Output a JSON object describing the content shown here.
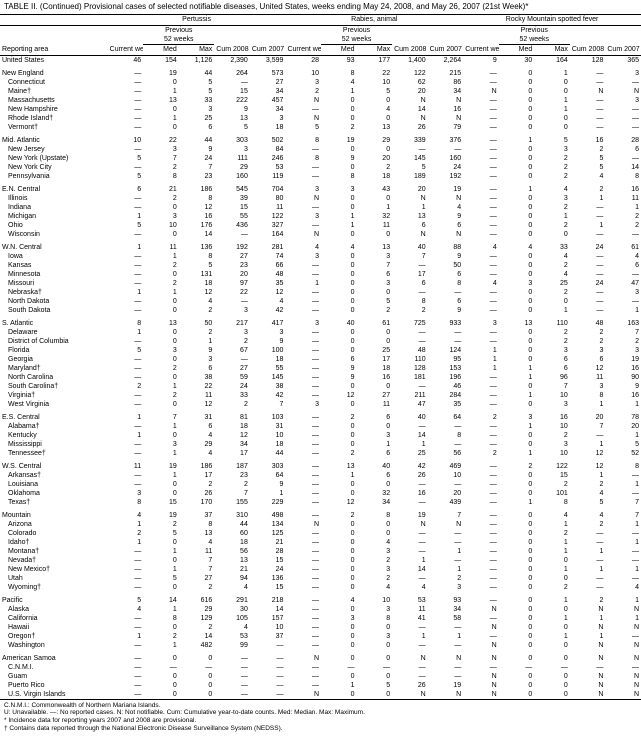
{
  "title": "TABLE II. (Continued) Provisional cases of selected notifiable diseases, United States, weeks ending May 24, 2008, and May 26, 2007 (21st Week)*",
  "diseases": [
    "Pertussis",
    "Rabies, animal",
    "Rocky Mountain spotted fever"
  ],
  "prev_label": "Previous",
  "prev_sub": "52 weeks",
  "col_headers": {
    "area": "Reporting area",
    "current": "Current week",
    "med": "Med",
    "max": "Max",
    "cum08": "Cum 2008",
    "cum07": "Cum 2007"
  },
  "groups": [
    {
      "region": [
        "United States",
        "46",
        "154",
        "1,126",
        "2,390",
        "3,599",
        "28",
        "93",
        "177",
        "1,400",
        "2,264",
        "9",
        "30",
        "164",
        "128",
        "365"
      ],
      "subs": []
    },
    {
      "region": [
        "New England",
        "—",
        "19",
        "44",
        "264",
        "573",
        "10",
        "8",
        "22",
        "122",
        "215",
        "—",
        "0",
        "1",
        "—",
        "3"
      ],
      "subs": [
        [
          "Connecticut",
          "—",
          "0",
          "5",
          "—",
          "27",
          "3",
          "4",
          "10",
          "62",
          "86",
          "—",
          "0",
          "0",
          "—",
          "—"
        ],
        [
          "Maine†",
          "—",
          "1",
          "5",
          "15",
          "34",
          "2",
          "1",
          "5",
          "20",
          "34",
          "N",
          "0",
          "0",
          "N",
          "N"
        ],
        [
          "Massachusetts",
          "—",
          "13",
          "33",
          "222",
          "457",
          "N",
          "0",
          "0",
          "N",
          "N",
          "—",
          "0",
          "1",
          "—",
          "3"
        ],
        [
          "New Hampshire",
          "—",
          "0",
          "3",
          "9",
          "34",
          "—",
          "0",
          "4",
          "14",
          "16",
          "—",
          "0",
          "1",
          "—",
          "—"
        ],
        [
          "Rhode Island†",
          "—",
          "1",
          "25",
          "13",
          "3",
          "N",
          "0",
          "0",
          "N",
          "N",
          "—",
          "0",
          "0",
          "—",
          "—"
        ],
        [
          "Vermont†",
          "—",
          "0",
          "6",
          "5",
          "18",
          "5",
          "2",
          "13",
          "26",
          "79",
          "—",
          "0",
          "0",
          "—",
          "—"
        ]
      ]
    },
    {
      "region": [
        "Mid. Atlantic",
        "10",
        "22",
        "44",
        "303",
        "502",
        "8",
        "19",
        "29",
        "339",
        "376",
        "—",
        "1",
        "5",
        "16",
        "28"
      ],
      "subs": [
        [
          "New Jersey",
          "—",
          "3",
          "9",
          "3",
          "84",
          "—",
          "0",
          "0",
          "—",
          "—",
          "—",
          "0",
          "3",
          "2",
          "6"
        ],
        [
          "New York (Upstate)",
          "5",
          "7",
          "24",
          "111",
          "246",
          "8",
          "9",
          "20",
          "145",
          "160",
          "—",
          "0",
          "2",
          "5",
          "—"
        ],
        [
          "New York City",
          "—",
          "2",
          "7",
          "29",
          "53",
          "—",
          "0",
          "2",
          "5",
          "24",
          "—",
          "0",
          "2",
          "5",
          "14"
        ],
        [
          "Pennsylvania",
          "5",
          "8",
          "23",
          "160",
          "119",
          "—",
          "8",
          "18",
          "189",
          "192",
          "—",
          "0",
          "2",
          "4",
          "8"
        ]
      ]
    },
    {
      "region": [
        "E.N. Central",
        "6",
        "21",
        "186",
        "545",
        "704",
        "3",
        "3",
        "43",
        "20",
        "19",
        "—",
        "1",
        "4",
        "2",
        "16"
      ],
      "subs": [
        [
          "Illinois",
          "—",
          "2",
          "8",
          "39",
          "80",
          "N",
          "0",
          "0",
          "N",
          "N",
          "—",
          "0",
          "3",
          "1",
          "11"
        ],
        [
          "Indiana",
          "—",
          "0",
          "12",
          "15",
          "11",
          "—",
          "0",
          "1",
          "1",
          "4",
          "—",
          "0",
          "2",
          "—",
          "1"
        ],
        [
          "Michigan",
          "1",
          "3",
          "16",
          "55",
          "122",
          "3",
          "1",
          "32",
          "13",
          "9",
          "—",
          "0",
          "1",
          "—",
          "2"
        ],
        [
          "Ohio",
          "5",
          "10",
          "176",
          "436",
          "327",
          "—",
          "1",
          "11",
          "6",
          "6",
          "—",
          "0",
          "2",
          "1",
          "2"
        ],
        [
          "Wisconsin",
          "—",
          "0",
          "14",
          "—",
          "164",
          "N",
          "0",
          "0",
          "N",
          "N",
          "—",
          "0",
          "0",
          "—",
          "—"
        ]
      ]
    },
    {
      "region": [
        "W.N. Central",
        "1",
        "11",
        "136",
        "192",
        "281",
        "4",
        "4",
        "13",
        "40",
        "88",
        "4",
        "4",
        "33",
        "24",
        "61"
      ],
      "subs": [
        [
          "Iowa",
          "—",
          "1",
          "8",
          "27",
          "74",
          "3",
          "0",
          "3",
          "7",
          "9",
          "—",
          "0",
          "4",
          "—",
          "4"
        ],
        [
          "Kansas",
          "—",
          "2",
          "5",
          "23",
          "66",
          "—",
          "0",
          "7",
          "—",
          "50",
          "—",
          "0",
          "2",
          "—",
          "6"
        ],
        [
          "Minnesota",
          "—",
          "0",
          "131",
          "20",
          "48",
          "—",
          "0",
          "6",
          "17",
          "6",
          "—",
          "0",
          "4",
          "—",
          "—"
        ],
        [
          "Missouri",
          "—",
          "2",
          "18",
          "97",
          "35",
          "1",
          "0",
          "3",
          "6",
          "8",
          "4",
          "3",
          "25",
          "24",
          "47"
        ],
        [
          "Nebraska†",
          "1",
          "1",
          "12",
          "22",
          "12",
          "—",
          "0",
          "0",
          "—",
          "—",
          "—",
          "0",
          "2",
          "—",
          "3"
        ],
        [
          "North Dakota",
          "—",
          "0",
          "4",
          "—",
          "4",
          "—",
          "0",
          "5",
          "8",
          "6",
          "—",
          "0",
          "0",
          "—",
          "—"
        ],
        [
          "South Dakota",
          "—",
          "0",
          "2",
          "3",
          "42",
          "—",
          "0",
          "2",
          "2",
          "9",
          "—",
          "0",
          "1",
          "—",
          "1"
        ]
      ]
    },
    {
      "region": [
        "S. Atlantic",
        "8",
        "13",
        "50",
        "217",
        "417",
        "3",
        "40",
        "61",
        "725",
        "933",
        "3",
        "13",
        "110",
        "48",
        "163"
      ],
      "subs": [
        [
          "Delaware",
          "1",
          "0",
          "2",
          "3",
          "3",
          "—",
          "0",
          "0",
          "—",
          "—",
          "—",
          "0",
          "2",
          "2",
          "7"
        ],
        [
          "District of Columbia",
          "—",
          "0",
          "1",
          "2",
          "9",
          "—",
          "0",
          "0",
          "—",
          "—",
          "—",
          "0",
          "2",
          "2",
          "2"
        ],
        [
          "Florida",
          "5",
          "3",
          "9",
          "67",
          "100",
          "—",
          "0",
          "25",
          "48",
          "124",
          "1",
          "0",
          "3",
          "3",
          "3"
        ],
        [
          "Georgia",
          "—",
          "0",
          "3",
          "—",
          "18",
          "—",
          "6",
          "17",
          "110",
          "95",
          "1",
          "0",
          "6",
          "6",
          "19"
        ],
        [
          "Maryland†",
          "—",
          "2",
          "6",
          "27",
          "55",
          "—",
          "9",
          "18",
          "128",
          "153",
          "1",
          "1",
          "6",
          "12",
          "16"
        ],
        [
          "North Carolina",
          "—",
          "0",
          "38",
          "59",
          "145",
          "—",
          "9",
          "16",
          "181",
          "196",
          "—",
          "1",
          "96",
          "11",
          "90"
        ],
        [
          "South Carolina†",
          "2",
          "1",
          "22",
          "24",
          "38",
          "—",
          "0",
          "0",
          "—",
          "46",
          "—",
          "0",
          "7",
          "3",
          "9"
        ],
        [
          "Virginia†",
          "—",
          "2",
          "11",
          "33",
          "42",
          "—",
          "12",
          "27",
          "211",
          "284",
          "—",
          "1",
          "10",
          "8",
          "16"
        ],
        [
          "West Virginia",
          "—",
          "0",
          "12",
          "2",
          "7",
          "3",
          "0",
          "11",
          "47",
          "35",
          "—",
          "0",
          "3",
          "1",
          "1"
        ]
      ]
    },
    {
      "region": [
        "E.S. Central",
        "1",
        "7",
        "31",
        "81",
        "103",
        "—",
        "2",
        "6",
        "40",
        "64",
        "2",
        "3",
        "16",
        "20",
        "78"
      ],
      "subs": [
        [
          "Alabama†",
          "—",
          "1",
          "6",
          "18",
          "31",
          "—",
          "0",
          "0",
          "—",
          "—",
          "—",
          "1",
          "10",
          "7",
          "20"
        ],
        [
          "Kentucky",
          "1",
          "0",
          "4",
          "12",
          "10",
          "—",
          "0",
          "3",
          "14",
          "8",
          "—",
          "0",
          "2",
          "—",
          "1"
        ],
        [
          "Mississippi",
          "—",
          "3",
          "29",
          "34",
          "18",
          "—",
          "0",
          "1",
          "1",
          "—",
          "—",
          "0",
          "3",
          "1",
          "5"
        ],
        [
          "Tennessee†",
          "—",
          "1",
          "4",
          "17",
          "44",
          "—",
          "2",
          "6",
          "25",
          "56",
          "2",
          "1",
          "10",
          "12",
          "52"
        ]
      ]
    },
    {
      "region": [
        "W.S. Central",
        "11",
        "19",
        "186",
        "187",
        "303",
        "—",
        "13",
        "40",
        "42",
        "469",
        "—",
        "2",
        "122",
        "12",
        "8"
      ],
      "subs": [
        [
          "Arkansas†",
          "—",
          "1",
          "17",
          "23",
          "64",
          "—",
          "1",
          "6",
          "26",
          "10",
          "—",
          "0",
          "15",
          "1",
          "—"
        ],
        [
          "Louisiana",
          "—",
          "0",
          "2",
          "2",
          "9",
          "—",
          "0",
          "0",
          "—",
          "—",
          "—",
          "0",
          "2",
          "2",
          "1"
        ],
        [
          "Oklahoma",
          "3",
          "0",
          "26",
          "7",
          "1",
          "—",
          "0",
          "32",
          "16",
          "20",
          "—",
          "0",
          "101",
          "4",
          "—"
        ],
        [
          "Texas†",
          "8",
          "15",
          "170",
          "155",
          "229",
          "—",
          "12",
          "34",
          "—",
          "439",
          "—",
          "1",
          "8",
          "5",
          "7"
        ]
      ]
    },
    {
      "region": [
        "Mountain",
        "4",
        "19",
        "37",
        "310",
        "498",
        "—",
        "2",
        "8",
        "19",
        "7",
        "—",
        "0",
        "4",
        "4",
        "7"
      ],
      "subs": [
        [
          "Arizona",
          "1",
          "2",
          "8",
          "44",
          "134",
          "N",
          "0",
          "0",
          "N",
          "N",
          "—",
          "0",
          "1",
          "2",
          "1"
        ],
        [
          "Colorado",
          "2",
          "5",
          "13",
          "60",
          "125",
          "—",
          "0",
          "0",
          "—",
          "—",
          "—",
          "0",
          "2",
          "—",
          "—"
        ],
        [
          "Idaho†",
          "1",
          "0",
          "4",
          "18",
          "21",
          "—",
          "0",
          "4",
          "—",
          "—",
          "—",
          "0",
          "1",
          "—",
          "1"
        ],
        [
          "Montana†",
          "—",
          "1",
          "11",
          "56",
          "28",
          "—",
          "0",
          "3",
          "—",
          "1",
          "—",
          "0",
          "1",
          "1",
          "—"
        ],
        [
          "Nevada†",
          "—",
          "0",
          "7",
          "13",
          "15",
          "—",
          "0",
          "2",
          "1",
          "—",
          "—",
          "0",
          "0",
          "—",
          "—"
        ],
        [
          "New Mexico†",
          "—",
          "1",
          "7",
          "21",
          "24",
          "—",
          "0",
          "3",
          "14",
          "1",
          "—",
          "0",
          "1",
          "1",
          "1"
        ],
        [
          "Utah",
          "—",
          "5",
          "27",
          "94",
          "136",
          "—",
          "0",
          "2",
          "—",
          "2",
          "—",
          "0",
          "0",
          "—",
          "—"
        ],
        [
          "Wyoming†",
          "—",
          "0",
          "2",
          "4",
          "15",
          "—",
          "0",
          "4",
          "4",
          "3",
          "—",
          "0",
          "2",
          "—",
          "4"
        ]
      ]
    },
    {
      "region": [
        "Pacific",
        "5",
        "14",
        "616",
        "291",
        "218",
        "—",
        "4",
        "10",
        "53",
        "93",
        "—",
        "0",
        "1",
        "2",
        "1"
      ],
      "subs": [
        [
          "Alaska",
          "4",
          "1",
          "29",
          "30",
          "14",
          "—",
          "0",
          "3",
          "11",
          "34",
          "N",
          "0",
          "0",
          "N",
          "N"
        ],
        [
          "California",
          "—",
          "8",
          "129",
          "105",
          "157",
          "—",
          "3",
          "8",
          "41",
          "58",
          "—",
          "0",
          "1",
          "1",
          "1"
        ],
        [
          "Hawaii",
          "—",
          "0",
          "2",
          "4",
          "10",
          "—",
          "0",
          "0",
          "—",
          "—",
          "N",
          "0",
          "0",
          "N",
          "N"
        ],
        [
          "Oregon†",
          "1",
          "2",
          "14",
          "53",
          "37",
          "—",
          "0",
          "3",
          "1",
          "1",
          "—",
          "0",
          "1",
          "1",
          "—"
        ],
        [
          "Washington",
          "—",
          "1",
          "482",
          "99",
          "—",
          "—",
          "0",
          "0",
          "—",
          "—",
          "N",
          "0",
          "0",
          "N",
          "N"
        ]
      ]
    },
    {
      "region": [
        "American Samoa",
        "—",
        "0",
        "0",
        "—",
        "—",
        "N",
        "0",
        "0",
        "N",
        "N",
        "N",
        "0",
        "0",
        "N",
        "N"
      ],
      "subs": [
        [
          "C.N.M.I.",
          "—",
          "—",
          "—",
          "—",
          "—",
          "—",
          "—",
          "—",
          "—",
          "—",
          "—",
          "—",
          "—",
          "—",
          "—"
        ],
        [
          "Guam",
          "—",
          "0",
          "0",
          "—",
          "—",
          "—",
          "0",
          "0",
          "—",
          "—",
          "N",
          "0",
          "0",
          "N",
          "N"
        ],
        [
          "Puerto Rico",
          "—",
          "0",
          "0",
          "—",
          "—",
          "—",
          "1",
          "5",
          "26",
          "19",
          "N",
          "0",
          "0",
          "N",
          "N"
        ],
        [
          "U.S. Virgin Islands",
          "—",
          "0",
          "0",
          "—",
          "—",
          "N",
          "0",
          "0",
          "N",
          "N",
          "N",
          "0",
          "0",
          "N",
          "N"
        ]
      ]
    }
  ],
  "footnotes": [
    "C.N.M.I.: Commonwealth of Northern Mariana Islands.",
    "U: Unavailable.  —: No reported cases.  N: Not notifiable.  Cum: Cumulative year-to-date counts.  Med: Median.  Max: Maximum.",
    "* Incidence data for reporting years 2007 and 2008 are provisional.",
    "† Contains data reported through the National Electronic Disease Surveillance System (NEDSS)."
  ]
}
